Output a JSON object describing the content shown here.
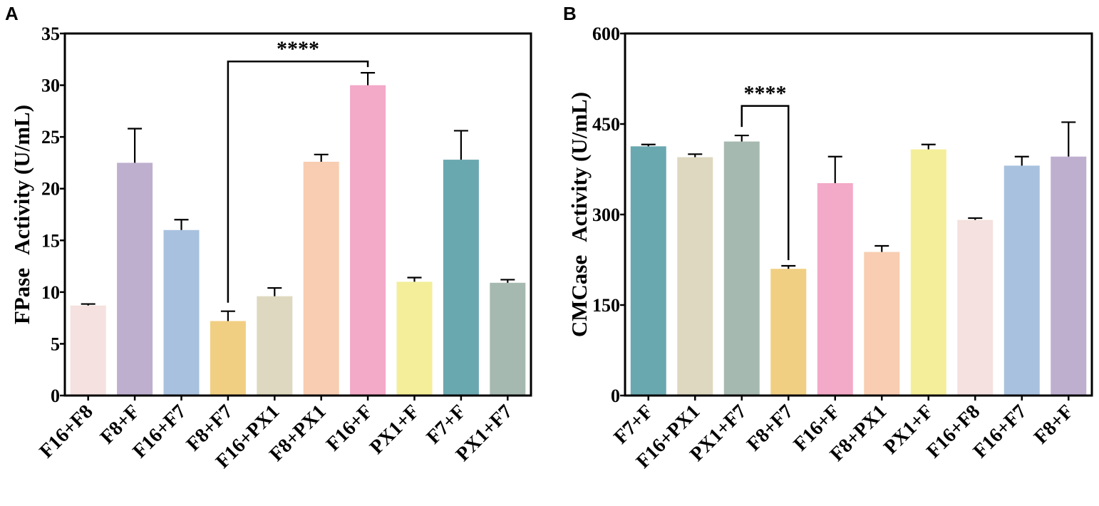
{
  "chart_data": [
    {
      "type": "bar",
      "panel_label": "A",
      "ylabel_parts": [
        "FPase",
        "Activity (U/mL)"
      ],
      "ylim": [
        0,
        35
      ],
      "yticks": [
        "0",
        "5",
        "10",
        "15",
        "20",
        "25",
        "30",
        "35"
      ],
      "ytick_values": [
        0,
        5,
        10,
        15,
        20,
        25,
        30,
        35
      ],
      "categories": [
        "F16+F8",
        "F8+F",
        "F16+F7",
        "F8+F7",
        "F16+PX1",
        "F8+PX1",
        "F16+F",
        "PX1+F",
        "F7+F",
        "PX1+F7"
      ],
      "values": [
        8.7,
        22.5,
        16.0,
        7.2,
        9.6,
        22.6,
        30.0,
        11.0,
        22.8,
        10.9
      ],
      "errors": [
        0.15,
        3.3,
        1.0,
        0.95,
        0.8,
        0.7,
        1.2,
        0.4,
        2.8,
        0.3
      ],
      "colors": [
        "#f5e1df",
        "#bfafcf",
        "#a8c1de",
        "#f1cf82",
        "#ddd8bf",
        "#f8cdb2",
        "#f3a9c8",
        "#f4ee9a",
        "#6aa8b0",
        "#a6b9b0"
      ],
      "significance": {
        "label": "****",
        "from": 3,
        "to": 6,
        "level": 32.3
      }
    },
    {
      "type": "bar",
      "panel_label": "B",
      "ylabel_parts": [
        "CMCase",
        "Activity (U/mL)"
      ],
      "ylim": [
        0,
        600
      ],
      "yticks": [
        "0",
        "150",
        "300",
        "450",
        "600"
      ],
      "ytick_values": [
        0,
        150,
        300,
        450,
        600
      ],
      "categories": [
        "F7+F",
        "F16+PX1",
        "PX1+F7",
        "F8+F7",
        "F16+F",
        "F8+PX1",
        "PX1+F",
        "F16+F8",
        "F16+F7",
        "F8+F"
      ],
      "values": [
        413,
        395,
        421,
        210,
        352,
        238,
        408,
        291,
        381,
        396
      ],
      "errors": [
        3,
        5,
        10,
        5,
        44,
        10,
        8,
        3,
        15,
        57
      ],
      "colors": [
        "#6aa8b0",
        "#ddd8bf",
        "#a6b9b0",
        "#f1cf82",
        "#f3a9c8",
        "#f8cdb2",
        "#f4ee9a",
        "#f5e1df",
        "#a8c1de",
        "#bfafcf"
      ],
      "significance": {
        "label": "****",
        "from": 2,
        "to": 3,
        "level": 480
      }
    }
  ]
}
